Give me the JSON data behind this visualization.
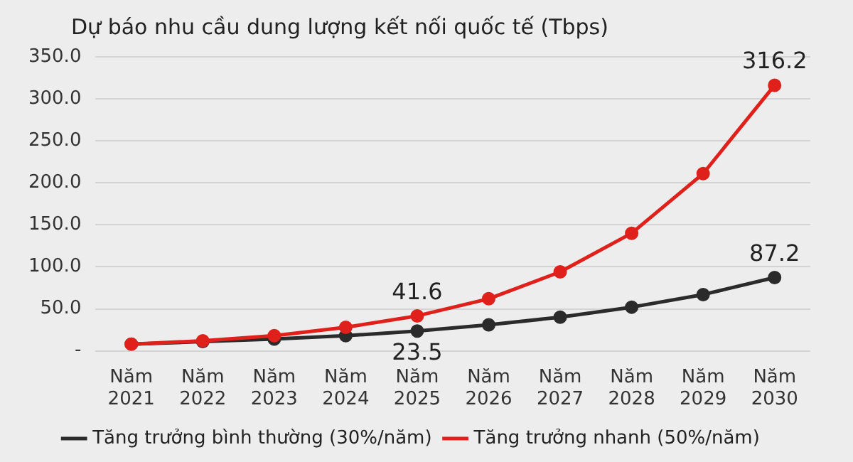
{
  "chart_data": {
    "type": "line",
    "title": "Dự báo nhu cầu dung lượng kết nối quốc tế (Tbps)",
    "categories": [
      "Năm 2021",
      "Năm 2022",
      "Năm 2023",
      "Năm 2024",
      "Năm 2025",
      "Năm 2026",
      "Năm 2027",
      "Năm 2028",
      "Năm 2029",
      "Năm 2030"
    ],
    "series": [
      {
        "name": "Tăng trưởng bình thường (30%/năm)",
        "color": "#2b2b2b",
        "values": [
          8,
          11,
          14,
          18,
          23.5,
          31,
          40,
          52,
          67,
          87.2
        ],
        "value_labels": [
          null,
          null,
          null,
          null,
          "23.5",
          null,
          null,
          null,
          null,
          "87.2"
        ]
      },
      {
        "name": "Tăng trưởng nhanh (50%/năm)",
        "color": "#e0201b",
        "values": [
          8,
          12,
          18,
          28,
          41.6,
          62,
          94,
          140,
          211,
          316.2
        ],
        "value_labels": [
          null,
          null,
          null,
          null,
          "41.6",
          null,
          null,
          null,
          null,
          "316.2"
        ]
      }
    ],
    "ylim": [
      0,
      350
    ],
    "yticks": [
      {
        "value": 0,
        "label": "-"
      },
      {
        "value": 50,
        "label": "50.0"
      },
      {
        "value": 100,
        "label": "100.0"
      },
      {
        "value": 150,
        "label": "150.0"
      },
      {
        "value": 200,
        "label": "200.0"
      },
      {
        "value": 250,
        "label": "250.0"
      },
      {
        "value": 300,
        "label": "300.0"
      },
      {
        "value": 350,
        "label": "350.0"
      }
    ],
    "grid": "y",
    "legend": "bottom",
    "marker": "circle",
    "line_style": "solid"
  }
}
